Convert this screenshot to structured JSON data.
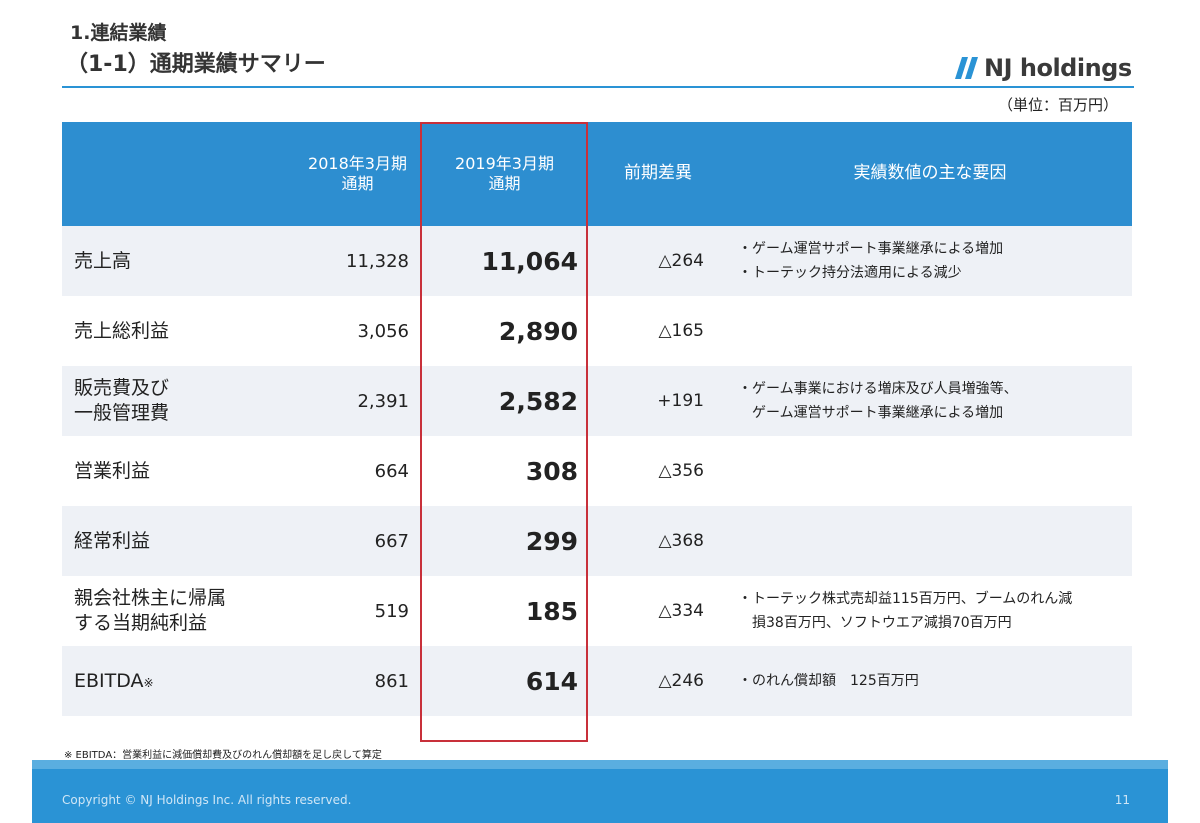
{
  "header": {
    "section_title": "1.連結業績",
    "page_title": "（1-1）通期業績サマリー",
    "logo_text": "NJ holdings",
    "unit": "（単位：百万円）"
  },
  "table": {
    "headers": {
      "label": "",
      "fy2018_line1": "2018年3月期",
      "fy2018_line2": "通期",
      "fy2019_line1": "2019年3月期",
      "fy2019_line2": "通期",
      "diff": "前期差異",
      "factors": "実績数値の主な要因"
    },
    "rows": [
      {
        "label1": "売上高",
        "label2": "",
        "fy2018": "11,328",
        "fy2019": "11,064",
        "diff": "△264",
        "notes": [
          "・ゲーム運営サポート事業継承による増加",
          "・トーテック持分法適用による減少"
        ]
      },
      {
        "label1": "売上総利益",
        "label2": "",
        "fy2018": "3,056",
        "fy2019": "2,890",
        "diff": "△165",
        "notes": [
          "",
          ""
        ]
      },
      {
        "label1": "販売費及び",
        "label2": "一般管理費",
        "fy2018": "2,391",
        "fy2019": "2,582",
        "diff": "+191",
        "notes": [
          "・ゲーム事業における増床及び人員増強等、",
          "　ゲーム運営サポート事業継承による増加"
        ]
      },
      {
        "label1": "営業利益",
        "label2": "",
        "fy2018": "664",
        "fy2019": "308",
        "diff": "△356",
        "notes": [
          "",
          ""
        ]
      },
      {
        "label1": "経常利益",
        "label2": "",
        "fy2018": "667",
        "fy2019": "299",
        "diff": "△368",
        "notes": [
          "",
          ""
        ]
      },
      {
        "label1": "親会社株主に帰属",
        "label2": "する当期純利益",
        "fy2018": "519",
        "fy2019": "185",
        "diff": "△334",
        "notes": [
          "・トーテック株式売却益115百万円、ブームのれん減",
          "　損38百万円、ソフトウエア減損70百万円"
        ]
      },
      {
        "label1": "EBITDA",
        "label2": "",
        "label_mark": "※",
        "fy2018": "861",
        "fy2019": "614",
        "diff": "△246",
        "notes": [
          "・のれん償却額　125百万円",
          ""
        ]
      }
    ]
  },
  "footnote": "※ EBITDA：営業利益に減価償却費及びのれん償却額を足し戻して算定",
  "footer": {
    "copyright": "Copyright © NJ Holdings Inc. All rights reserved.",
    "page_number": "11"
  },
  "colors": {
    "header_blue": "#2d8ed0",
    "row_stripe": "#eef1f6",
    "highlight_red": "#c8303a",
    "footer_blue": "#2a93d5"
  }
}
